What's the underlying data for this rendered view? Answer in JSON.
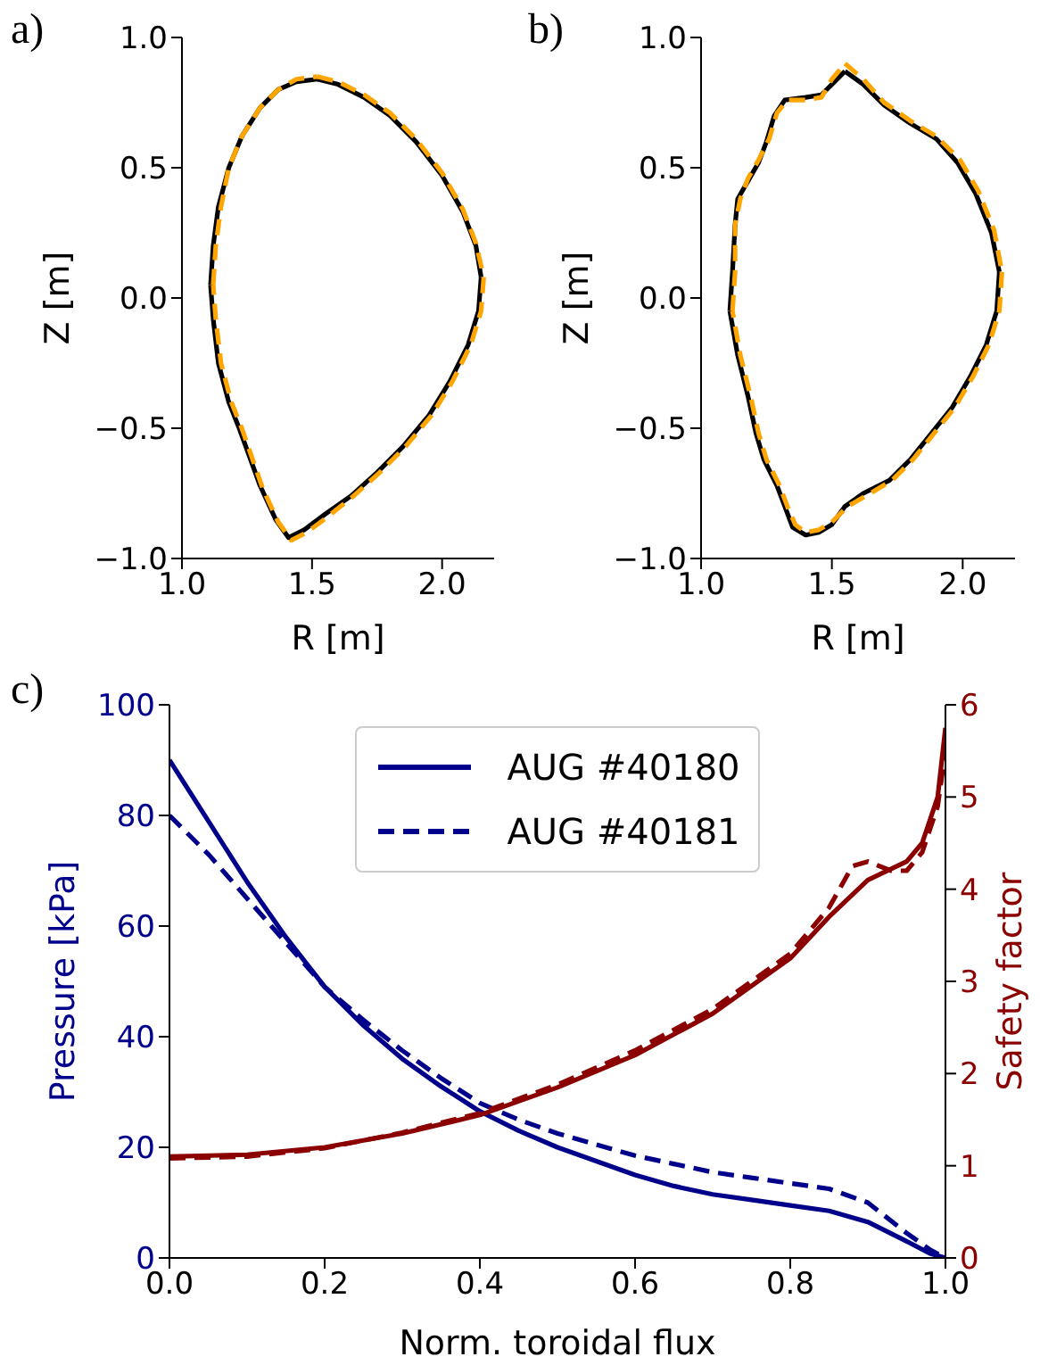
{
  "chart_data": [
    {
      "type": "line",
      "annotations": [
        "a)"
      ],
      "xlabel": "R [m]",
      "ylabel": "Z [m]",
      "xlim": [
        1.0,
        2.2
      ],
      "ylim": [
        -1.0,
        1.0
      ],
      "xticks": [
        {
          "value": 1.0,
          "label": "1.0"
        },
        {
          "value": 1.5,
          "label": "1.5"
        },
        {
          "value": 2.0,
          "label": "2.0"
        }
      ],
      "yticks": [
        {
          "value": -1.0,
          "label": "−1.0"
        },
        {
          "value": -0.5,
          "label": "−0.5"
        },
        {
          "value": 0.0,
          "label": "0.0"
        },
        {
          "value": 0.5,
          "label": "0.5"
        },
        {
          "value": 1.0,
          "label": "1.0"
        }
      ],
      "grid": false,
      "series": [
        {
          "color": "#000000",
          "line_style": "solid",
          "x": [
            1.52,
            1.6,
            1.7,
            1.8,
            1.9,
            2.0,
            2.08,
            2.13,
            2.15,
            2.14,
            2.1,
            2.03,
            1.95,
            1.85,
            1.75,
            1.65,
            1.55,
            1.47,
            1.41,
            1.36,
            1.3,
            1.22,
            1.18,
            1.14,
            1.12,
            1.11,
            1.12,
            1.14,
            1.18,
            1.23,
            1.3,
            1.37,
            1.44,
            1.52
          ],
          "values": [
            0.84,
            0.82,
            0.77,
            0.7,
            0.6,
            0.47,
            0.33,
            0.2,
            0.08,
            -0.05,
            -0.18,
            -0.32,
            -0.45,
            -0.57,
            -0.67,
            -0.76,
            -0.83,
            -0.89,
            -0.92,
            -0.85,
            -0.72,
            -0.5,
            -0.4,
            -0.25,
            -0.08,
            0.05,
            0.2,
            0.35,
            0.5,
            0.62,
            0.73,
            0.8,
            0.83,
            0.84
          ]
        },
        {
          "color": "#ffa500",
          "line_style": "dashed",
          "x": [
            1.52,
            1.6,
            1.7,
            1.8,
            1.9,
            2.0,
            2.08,
            2.13,
            2.16,
            2.15,
            2.11,
            2.04,
            1.96,
            1.86,
            1.76,
            1.66,
            1.56,
            1.48,
            1.42,
            1.37,
            1.31,
            1.23,
            1.19,
            1.15,
            1.13,
            1.12,
            1.13,
            1.15,
            1.18,
            1.23,
            1.3,
            1.37,
            1.44,
            1.52
          ],
          "values": [
            0.85,
            0.83,
            0.78,
            0.71,
            0.61,
            0.48,
            0.34,
            0.21,
            0.08,
            -0.05,
            -0.18,
            -0.32,
            -0.45,
            -0.57,
            -0.67,
            -0.76,
            -0.84,
            -0.9,
            -0.93,
            -0.86,
            -0.73,
            -0.5,
            -0.4,
            -0.25,
            -0.08,
            0.05,
            0.2,
            0.35,
            0.5,
            0.62,
            0.73,
            0.8,
            0.84,
            0.85
          ]
        }
      ]
    },
    {
      "type": "line",
      "annotations": [
        "b)"
      ],
      "xlabel": "R [m]",
      "ylabel": "Z [m]",
      "xlim": [
        1.0,
        2.2
      ],
      "ylim": [
        -1.0,
        1.0
      ],
      "xticks": [
        {
          "value": 1.0,
          "label": "1.0"
        },
        {
          "value": 1.5,
          "label": "1.5"
        },
        {
          "value": 2.0,
          "label": "2.0"
        }
      ],
      "yticks": [
        {
          "value": -1.0,
          "label": "−1.0"
        },
        {
          "value": -0.5,
          "label": "−0.5"
        },
        {
          "value": 0.0,
          "label": "0.0"
        },
        {
          "value": 0.5,
          "label": "0.5"
        },
        {
          "value": 1.0,
          "label": "1.0"
        }
      ],
      "grid": false,
      "series": [
        {
          "color": "#000000",
          "line_style": "solid",
          "x": [
            1.55,
            1.62,
            1.7,
            1.8,
            1.9,
            1.98,
            2.05,
            2.11,
            2.14,
            2.13,
            2.09,
            2.03,
            1.96,
            1.88,
            1.8,
            1.72,
            1.62,
            1.55,
            1.5,
            1.45,
            1.4,
            1.35,
            1.32,
            1.29,
            1.24,
            1.21,
            1.18,
            1.14,
            1.11,
            1.12,
            1.13,
            1.14,
            1.18,
            1.22,
            1.25,
            1.28,
            1.32,
            1.4,
            1.46,
            1.5,
            1.55
          ],
          "values": [
            0.87,
            0.82,
            0.74,
            0.67,
            0.61,
            0.52,
            0.4,
            0.25,
            0.1,
            -0.05,
            -0.18,
            -0.3,
            -0.42,
            -0.52,
            -0.62,
            -0.7,
            -0.75,
            -0.8,
            -0.87,
            -0.9,
            -0.91,
            -0.88,
            -0.8,
            -0.72,
            -0.62,
            -0.52,
            -0.38,
            -0.22,
            -0.05,
            0.1,
            0.28,
            0.38,
            0.45,
            0.52,
            0.6,
            0.7,
            0.76,
            0.77,
            0.78,
            0.82,
            0.87
          ]
        },
        {
          "color": "#ffa500",
          "line_style": "dashed",
          "x": [
            1.55,
            1.62,
            1.7,
            1.8,
            1.9,
            1.99,
            2.06,
            2.12,
            2.15,
            2.14,
            2.1,
            2.04,
            1.97,
            1.89,
            1.81,
            1.73,
            1.63,
            1.56,
            1.5,
            1.45,
            1.4,
            1.36,
            1.33,
            1.3,
            1.25,
            1.22,
            1.19,
            1.15,
            1.12,
            1.13,
            1.13,
            1.15,
            1.18,
            1.22,
            1.26,
            1.29,
            1.33,
            1.4,
            1.46,
            1.5,
            1.55
          ],
          "values": [
            0.9,
            0.84,
            0.75,
            0.68,
            0.62,
            0.53,
            0.41,
            0.26,
            0.1,
            -0.05,
            -0.18,
            -0.3,
            -0.42,
            -0.52,
            -0.62,
            -0.7,
            -0.76,
            -0.8,
            -0.86,
            -0.89,
            -0.9,
            -0.87,
            -0.8,
            -0.72,
            -0.62,
            -0.52,
            -0.38,
            -0.22,
            -0.05,
            0.1,
            0.28,
            0.38,
            0.46,
            0.53,
            0.61,
            0.71,
            0.76,
            0.76,
            0.77,
            0.84,
            0.9
          ]
        }
      ]
    },
    {
      "type": "line",
      "annotations": [
        "c)"
      ],
      "xlabel": "Norm. toroidal flux",
      "ylabel": "Pressure [kPa]",
      "y2label": "Safety factor",
      "xlim": [
        0.0,
        1.0
      ],
      "ylim": [
        0,
        100
      ],
      "y2lim": [
        0,
        6
      ],
      "xticks": [
        {
          "value": 0,
          "label": "0.0"
        },
        {
          "value": 0.2,
          "label": "0.2"
        },
        {
          "value": 0.4,
          "label": "0.4"
        },
        {
          "value": 0.6,
          "label": "0.6"
        },
        {
          "value": 0.8,
          "label": "0.8"
        },
        {
          "value": 1.0,
          "label": "1.0"
        }
      ],
      "yticks": [
        0,
        20,
        40,
        60,
        80,
        100
      ],
      "y2ticks": [
        0,
        1,
        2,
        3,
        4,
        5,
        6
      ],
      "grid": false,
      "legend": "top",
      "series": [
        {
          "name": "AUG #40180",
          "color": "#00008b",
          "line_style": "solid",
          "x": [
            0,
            0.05,
            0.1,
            0.15,
            0.2,
            0.25,
            0.3,
            0.35,
            0.4,
            0.45,
            0.5,
            0.55,
            0.6,
            0.65,
            0.7,
            0.75,
            0.8,
            0.85,
            0.9,
            0.95,
            0.98,
            1.0
          ],
          "values": [
            90,
            79,
            68,
            58,
            49,
            42,
            36,
            31,
            26.5,
            23,
            20,
            17.5,
            15,
            13,
            11.5,
            10.5,
            9.5,
            8.5,
            6.5,
            3,
            0.8,
            0
          ]
        },
        {
          "name": "AUG #40181",
          "color": "#00008b",
          "line_style": "dashed",
          "x": [
            0,
            0.05,
            0.1,
            0.15,
            0.2,
            0.25,
            0.3,
            0.35,
            0.4,
            0.45,
            0.5,
            0.55,
            0.6,
            0.65,
            0.7,
            0.75,
            0.8,
            0.85,
            0.9,
            0.95,
            0.98,
            1.0
          ],
          "values": [
            80,
            73,
            65,
            57,
            49,
            43,
            37.5,
            32.5,
            28,
            25,
            22.5,
            20.5,
            18.5,
            17,
            15.5,
            14.5,
            13.5,
            12.5,
            10,
            4.5,
            1.5,
            0
          ]
        },
        {
          "color": "#8b0000",
          "line_style": "solid",
          "axis": "y2",
          "x": [
            0,
            0.1,
            0.2,
            0.3,
            0.4,
            0.5,
            0.6,
            0.7,
            0.8,
            0.85,
            0.9,
            0.95,
            0.97,
            0.99,
            1.0
          ],
          "values": [
            1.1,
            1.12,
            1.2,
            1.35,
            1.55,
            1.85,
            2.2,
            2.65,
            3.25,
            3.7,
            4.1,
            4.3,
            4.5,
            5.0,
            5.75
          ]
        },
        {
          "color": "#8b0000",
          "line_style": "dashed",
          "axis": "y2",
          "x": [
            0,
            0.1,
            0.2,
            0.3,
            0.4,
            0.5,
            0.6,
            0.7,
            0.8,
            0.85,
            0.88,
            0.9,
            0.93,
            0.95,
            0.97,
            0.99,
            1.0
          ],
          "values": [
            1.08,
            1.1,
            1.19,
            1.36,
            1.57,
            1.88,
            2.25,
            2.7,
            3.3,
            3.8,
            4.25,
            4.3,
            4.2,
            4.2,
            4.4,
            4.9,
            5.5
          ]
        }
      ]
    }
  ]
}
